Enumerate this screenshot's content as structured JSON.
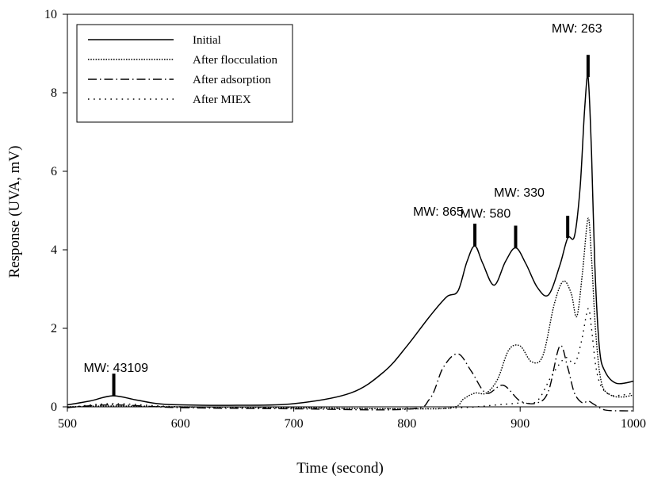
{
  "chart_data": {
    "type": "line",
    "title": "",
    "xlabel": "Time (second)",
    "ylabel": "Response (UVA, mV)",
    "xlim": [
      500,
      1000
    ],
    "ylim": [
      0,
      10
    ],
    "xticks": [
      500,
      600,
      700,
      800,
      900,
      1000
    ],
    "yticks": [
      0,
      2,
      4,
      6,
      8,
      10
    ],
    "grid": false,
    "legend_position": "top-left",
    "series": [
      {
        "name": "Initial",
        "line_style": "solid",
        "x": [
          500,
          520,
          540,
          560,
          580,
          600,
          650,
          700,
          750,
          780,
          800,
          820,
          835,
          845,
          853,
          860,
          867,
          877,
          887,
          896,
          905,
          915,
          925,
          935,
          942,
          948,
          953,
          957,
          960,
          963,
          966,
          970,
          975,
          985,
          1000
        ],
        "y": [
          0.05,
          0.15,
          0.28,
          0.18,
          0.08,
          0.05,
          0.04,
          0.08,
          0.35,
          0.9,
          1.55,
          2.3,
          2.8,
          2.95,
          3.7,
          4.1,
          3.65,
          3.1,
          3.7,
          4.05,
          3.65,
          3.05,
          2.85,
          3.6,
          4.3,
          4.35,
          5.6,
          7.6,
          8.4,
          6.5,
          3.6,
          1.5,
          0.9,
          0.6,
          0.65
        ]
      },
      {
        "name": "After flocculation",
        "line_style": "dotted",
        "x": [
          500,
          540,
          600,
          700,
          800,
          840,
          850,
          860,
          870,
          880,
          890,
          900,
          910,
          920,
          930,
          938,
          945,
          950,
          955,
          960,
          963,
          967,
          972,
          980,
          990,
          1000
        ],
        "y": [
          0.0,
          0.02,
          0.0,
          -0.02,
          -0.05,
          -0.02,
          0.2,
          0.35,
          0.35,
          0.7,
          1.45,
          1.55,
          1.15,
          1.3,
          2.6,
          3.2,
          2.9,
          2.3,
          3.4,
          4.8,
          3.8,
          1.8,
          0.6,
          0.3,
          0.25,
          0.3
        ]
      },
      {
        "name": "After adsorption",
        "line_style": "dash-dot",
        "x": [
          500,
          540,
          600,
          700,
          800,
          820,
          832,
          845,
          857,
          870,
          885,
          900,
          915,
          925,
          935,
          942,
          948,
          955,
          960,
          966,
          975,
          990,
          1000
        ],
        "y": [
          -0.02,
          0.05,
          -0.02,
          -0.05,
          -0.06,
          0.2,
          1.0,
          1.35,
          0.9,
          0.35,
          0.55,
          0.15,
          0.1,
          0.4,
          1.55,
          1.0,
          0.35,
          0.1,
          0.15,
          0.05,
          -0.08,
          -0.1,
          -0.1
        ]
      },
      {
        "name": "After MIEX",
        "line_style": "sparse-dot",
        "x": [
          500,
          540,
          600,
          700,
          800,
          850,
          880,
          900,
          915,
          928,
          940,
          948,
          954,
          960,
          963,
          967,
          972,
          980,
          990,
          1000
        ],
        "y": [
          -0.02,
          0.08,
          0.0,
          -0.03,
          -0.05,
          -0.02,
          0.05,
          0.1,
          0.15,
          0.8,
          1.25,
          1.1,
          1.65,
          2.5,
          2.0,
          1.0,
          0.5,
          0.3,
          0.3,
          0.35
        ]
      }
    ],
    "annotations": [
      {
        "text": "MW: 43109",
        "x": 541,
        "y": 0.28
      },
      {
        "text": "MW: 865",
        "x": 860,
        "y": 4.1
      },
      {
        "text": "MW: 580",
        "x": 896,
        "y": 4.05
      },
      {
        "text": "MW: 330",
        "x": 942,
        "y": 4.3
      },
      {
        "text": "MW: 263",
        "x": 960,
        "y": 8.4
      }
    ]
  },
  "colors": {
    "line": "#000000",
    "background": "#ffffff"
  }
}
